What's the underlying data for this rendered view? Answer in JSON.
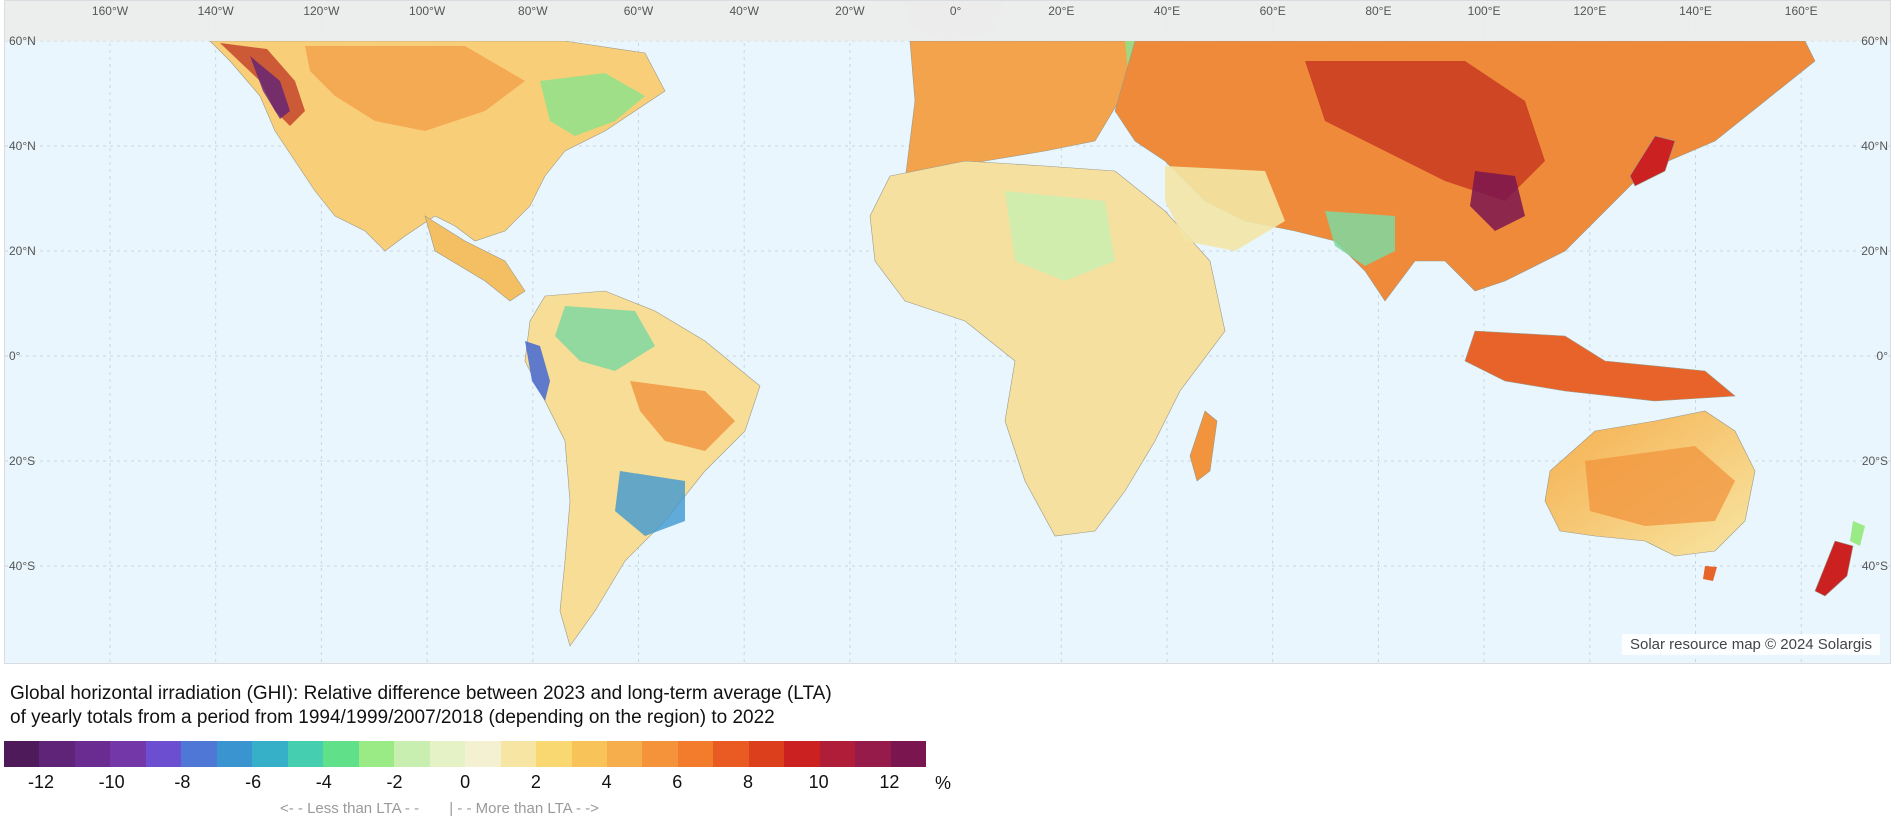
{
  "map": {
    "longitude_labels": [
      "160°W",
      "140°W",
      "120°W",
      "100°W",
      "80°W",
      "60°W",
      "40°W",
      "20°W",
      "0°",
      "20°E",
      "40°E",
      "60°E",
      "80°E",
      "100°E",
      "120°E",
      "140°E",
      "160°E"
    ],
    "latitude_labels": [
      "60°N",
      "40°N",
      "20°N",
      "0°",
      "20°S",
      "40°S"
    ],
    "credit": "Solar resource map © 2024 Solargis",
    "ocean_color": "#eaf6fd",
    "polar_mask_color": "#ececec"
  },
  "caption": {
    "line1": "Global horizontal irradiation (GHI): Relative difference between 2023 and long-term average (LTA)",
    "line2": "of yearly totals from a period from 1994/1999/2007/2018 (depending on the region) to 2022"
  },
  "legend": {
    "colors": [
      "#4f1a5a",
      "#5f2378",
      "#6a2c91",
      "#7437a8",
      "#6c4fd0",
      "#4f78d6",
      "#3a94d0",
      "#35b0c8",
      "#46ceb0",
      "#61e08a",
      "#9aea85",
      "#c9efb0",
      "#e4f2c6",
      "#f3f1d2",
      "#f7e6a3",
      "#f9d872",
      "#f8c45a",
      "#f6ad4c",
      "#f5933a",
      "#f27b2c",
      "#ea5a23",
      "#dc3f1c",
      "#cb2221",
      "#b01d39",
      "#961a4a",
      "#7b1550"
    ],
    "ticks": [
      "-12",
      "-10",
      "-8",
      "-6",
      "-4",
      "-2",
      "0",
      "2",
      "4",
      "6",
      "8",
      "10",
      "12"
    ],
    "unit": "%",
    "less_note": "<- - Less than LTA - -",
    "separator": "|",
    "more_note": "- - More than LTA - ->"
  }
}
